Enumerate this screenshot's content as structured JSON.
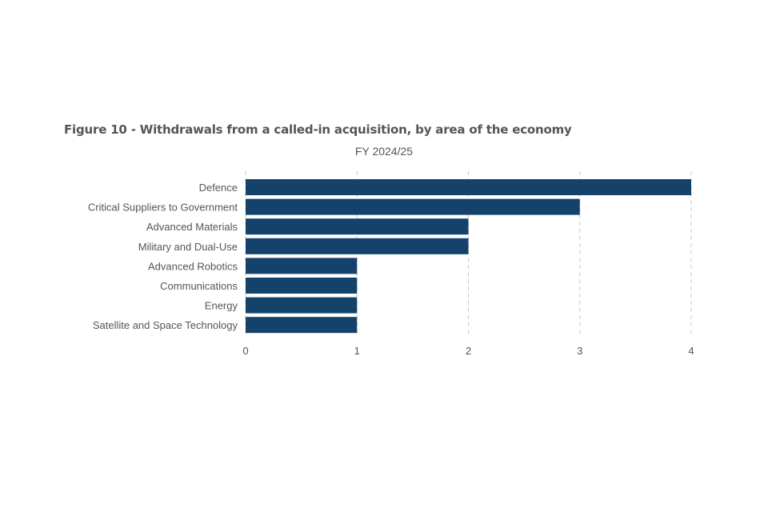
{
  "chart_data": {
    "type": "bar",
    "orientation": "horizontal",
    "title": "Figure 10 - Withdrawals from a called-in acquisition, by area of the economy",
    "subtitle": "FY 2024/25",
    "categories": [
      "Defence",
      "Critical Suppliers to Government",
      "Advanced Materials",
      "Military and Dual-Use",
      "Advanced Robotics",
      "Communications",
      "Energy",
      "Satellite and Space Technology"
    ],
    "values": [
      4,
      3,
      2,
      2,
      1,
      1,
      1,
      1
    ],
    "xticks": [
      "0",
      "1",
      "2",
      "3",
      "4"
    ],
    "xlim": [
      0,
      4
    ],
    "grid": "vertical dashed",
    "bar_color": "#14426b",
    "grid_color": "#c8c8c8",
    "text_color": "#555555"
  }
}
